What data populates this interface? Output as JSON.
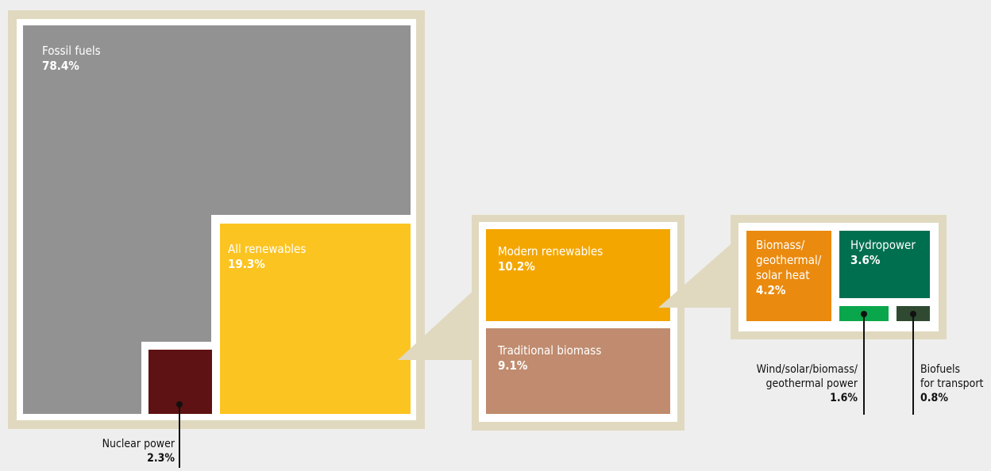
{
  "colors": {
    "fossil": "#929292",
    "nuclear": "#5f1213",
    "renewables": "#fcc421",
    "modern": "#f4a600",
    "traditional": "#c08b6e",
    "heat": "#ea8a0e",
    "hydro": "#006f4f",
    "wind": "#0aa64b",
    "biofuels": "#2f4a30",
    "frame": "#e0d9bf",
    "background": "#eeeeee"
  },
  "chart_data": [
    {
      "type": "treemap",
      "items": [
        {
          "name": "Fossil fuels",
          "value": 78.4,
          "value_label": "78.4%"
        },
        {
          "name": "All renewables",
          "value": 19.3,
          "value_label": "19.3%"
        },
        {
          "name": "Nuclear power",
          "value": 2.3,
          "value_label": "2.3%"
        }
      ]
    },
    {
      "type": "treemap",
      "items": [
        {
          "name": "Modern renewables",
          "value": 10.2,
          "value_label": "10.2%"
        },
        {
          "name": "Traditional biomass",
          "value": 9.1,
          "value_label": "9.1%"
        }
      ]
    },
    {
      "type": "treemap",
      "items": [
        {
          "name": "Biomass/ geothermal/ solar heat",
          "lines": [
            "Biomass/",
            "geothermal/",
            "solar heat"
          ],
          "value": 4.2,
          "value_label": "4.2%"
        },
        {
          "name": "Hydropower",
          "value": 3.6,
          "value_label": "3.6%"
        },
        {
          "name": "Wind/solar/biomass/ geothermal power",
          "lines": [
            "Wind/solar/biomass/",
            "geothermal power"
          ],
          "value": 1.6,
          "value_label": "1.6%"
        },
        {
          "name": "Biofuels for transport",
          "lines": [
            "Biofuels",
            "for transport"
          ],
          "value": 0.8,
          "value_label": "0.8%"
        }
      ]
    }
  ]
}
